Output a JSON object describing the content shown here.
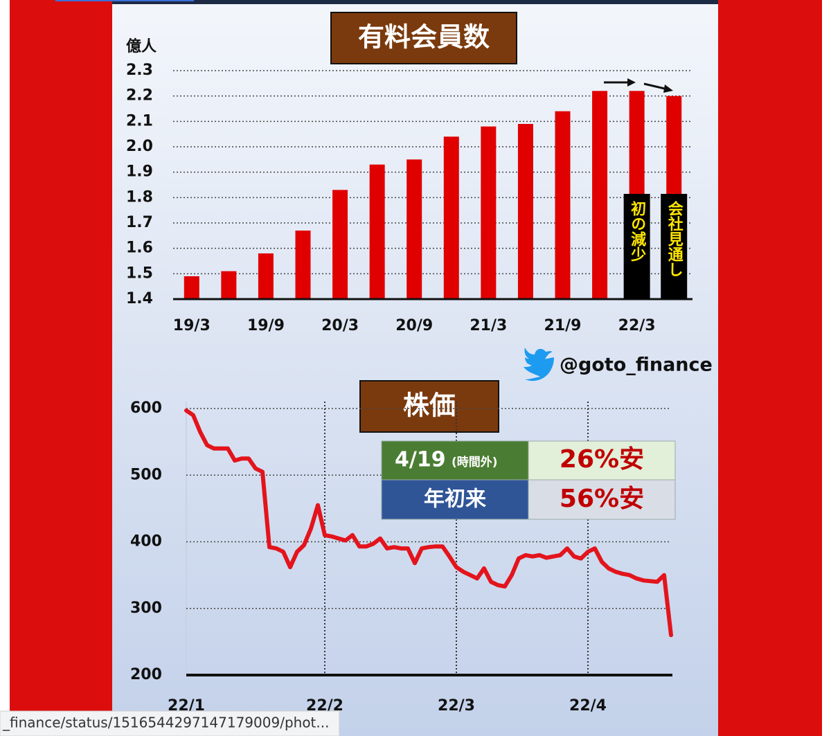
{
  "chart_data": [
    {
      "type": "bar",
      "title": "有料会員数",
      "y_label": "億人",
      "categories": [
        "19/3",
        null,
        "19/9",
        null,
        "20/3",
        null,
        "20/9",
        null,
        "21/3",
        null,
        "21/9",
        null,
        "22/3",
        null
      ],
      "values": [
        1.49,
        1.51,
        1.58,
        1.67,
        1.83,
        1.93,
        1.95,
        2.04,
        2.08,
        2.09,
        2.14,
        2.22,
        2.22,
        2.2
      ],
      "color": "#e00000",
      "ylim": [
        1.4,
        2.3
      ],
      "yticks": [
        1.4,
        1.5,
        1.6,
        1.7,
        1.8,
        1.9,
        {
          "value": 2.0,
          "label": "2.0"
        },
        2.1,
        2.2,
        2.3
      ],
      "grid": true,
      "annotations": [
        "初の減少",
        "会社見通し"
      ]
    },
    {
      "type": "line",
      "title": "株価",
      "values": [
        597,
        590,
        565,
        545,
        540,
        540,
        540,
        522,
        525,
        525,
        510,
        505,
        392,
        390,
        385,
        362,
        385,
        395,
        420,
        455,
        410,
        408,
        405,
        402,
        410,
        393,
        393,
        397,
        405,
        390,
        392,
        390,
        390,
        368,
        390,
        392,
        393,
        393,
        378,
        362,
        355,
        350,
        345,
        360,
        340,
        335,
        333,
        350,
        375,
        380,
        378,
        380,
        376,
        378,
        380,
        390,
        378,
        375,
        385,
        390,
        370,
        360,
        355,
        352,
        350,
        345,
        342,
        341,
        340,
        350,
        260
      ],
      "color": "#e3141c",
      "xlim": [
        0,
        70
      ],
      "xticks": [
        {
          "value": 0,
          "label": "22/1"
        },
        {
          "value": 20,
          "label": "22/2"
        },
        {
          "value": 39,
          "label": "22/3"
        },
        {
          "value": 58,
          "label": "22/4"
        }
      ],
      "ylim": [
        200,
        600
      ],
      "yticks": [
        200,
        300,
        400,
        500,
        600
      ],
      "grid": true,
      "table": {
        "rows": [
          {
            "label": "4/19",
            "note": "(時間外)",
            "value": "26%安"
          },
          {
            "label": "年初来",
            "value": "56%安"
          }
        ]
      }
    }
  ],
  "handle": "@goto_finance",
  "status_url": "_finance/status/1516544297147179009/phot..."
}
